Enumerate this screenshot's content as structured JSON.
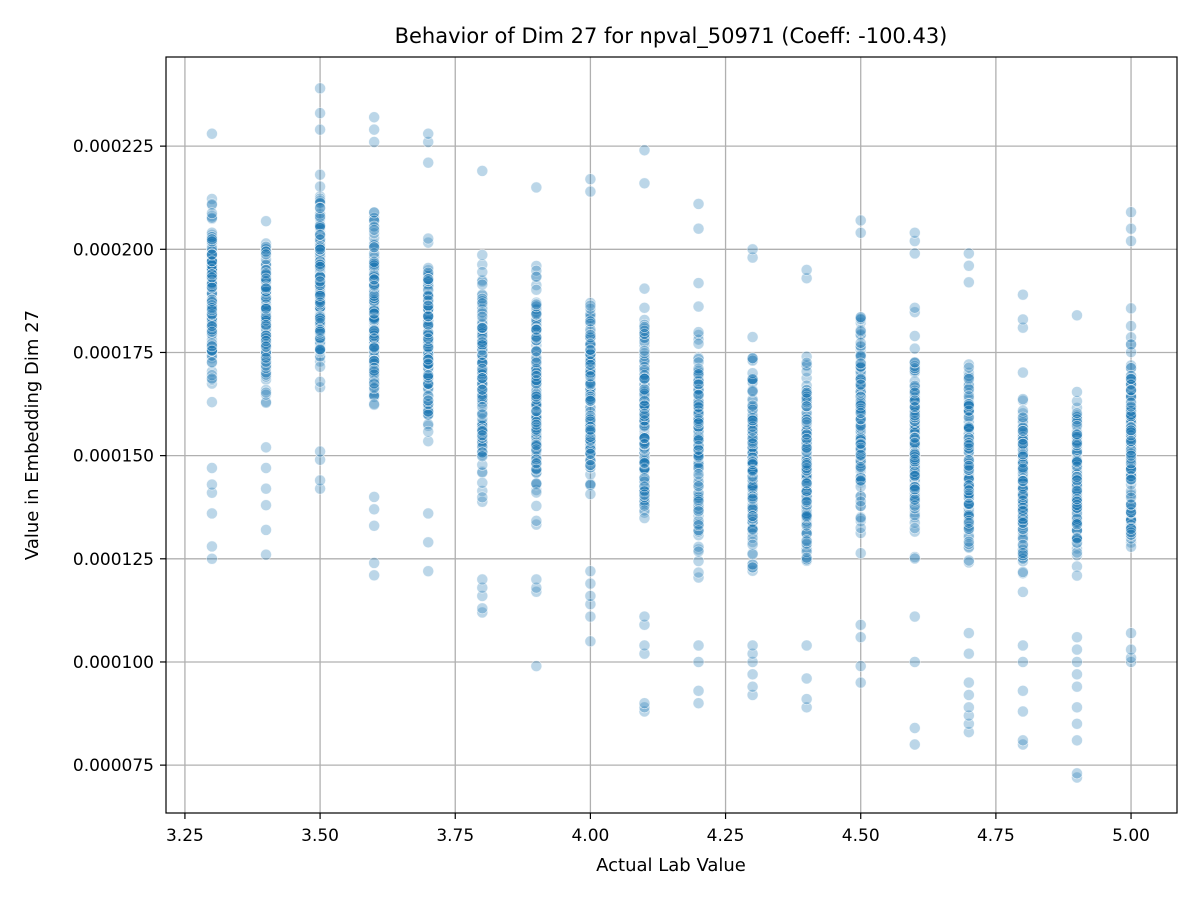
{
  "chart_data": {
    "type": "scatter",
    "title": "Behavior of Dim 27 for npval_50971 (Coeff: -100.43)",
    "xlabel": "Actual Lab Value",
    "ylabel": "Value in Embedding Dim 27",
    "xlim": [
      3.215,
      5.085
    ],
    "ylim": [
      6.34e-05,
      0.0002466
    ],
    "x_ticks": [
      "3.25",
      "3.50",
      "3.75",
      "4.00",
      "4.25",
      "4.50",
      "4.75",
      "5.00"
    ],
    "x_tick_values": [
      3.25,
      3.5,
      3.75,
      4.0,
      4.25,
      4.5,
      4.75,
      5.0
    ],
    "y_ticks": [
      "0.000075",
      "0.000100",
      "0.000125",
      "0.000150",
      "0.000175",
      "0.000200",
      "0.000225"
    ],
    "y_tick_values": [
      7.5e-05,
      0.0001,
      0.000125,
      0.00015,
      0.000175,
      0.0002,
      0.000225
    ],
    "grid": true,
    "marker_color": "#1f77b4",
    "marker_opacity": 0.3,
    "columns": [
      {
        "x": 3.3,
        "y_min": 0.000125,
        "y_max": 0.000228,
        "dense_min": 0.000155,
        "dense_max": 0.000222,
        "outliers": [
          0.000125,
          0.000128,
          0.000136,
          0.000141,
          0.000143,
          0.000147,
          0.000228
        ]
      },
      {
        "x": 3.4,
        "y_min": 0.000126,
        "y_max": 0.000217,
        "dense_min": 0.000155,
        "dense_max": 0.000215,
        "outliers": [
          0.000126,
          0.000132,
          0.000138,
          0.000142,
          0.000147,
          0.000152
        ]
      },
      {
        "x": 3.5,
        "y_min": 0.000142,
        "y_max": 0.000239,
        "dense_min": 0.000158,
        "dense_max": 0.000226,
        "outliers": [
          0.000142,
          0.000144,
          0.000149,
          0.000151,
          0.000229,
          0.000233,
          0.000239
        ]
      },
      {
        "x": 3.6,
        "y_min": 0.000121,
        "y_max": 0.000232,
        "dense_min": 0.000145,
        "dense_max": 0.000222,
        "outliers": [
          0.000121,
          0.000124,
          0.000133,
          0.000137,
          0.00014,
          0.000226,
          0.000229,
          0.000232
        ]
      },
      {
        "x": 3.7,
        "y_min": 0.000122,
        "y_max": 0.000228,
        "dense_min": 0.00014,
        "dense_max": 0.000212,
        "outliers": [
          0.000122,
          0.000129,
          0.000136,
          0.000221,
          0.000226,
          0.000228
        ]
      },
      {
        "x": 3.8,
        "y_min": 0.000112,
        "y_max": 0.000219,
        "dense_min": 0.000125,
        "dense_max": 0.000212,
        "outliers": [
          0.000112,
          0.000113,
          0.000116,
          0.000118,
          0.00012,
          0.000219
        ]
      },
      {
        "x": 3.9,
        "y_min": 9.9e-05,
        "y_max": 0.000215,
        "dense_min": 0.000122,
        "dense_max": 0.00021,
        "outliers": [
          9.9e-05,
          0.000117,
          0.000118,
          0.00012,
          0.000215
        ]
      },
      {
        "x": 4.0,
        "y_min": 0.000105,
        "y_max": 0.000217,
        "dense_min": 0.000125,
        "dense_max": 0.000205,
        "outliers": [
          0.000105,
          0.000111,
          0.000114,
          0.000116,
          0.000119,
          0.000122,
          0.000214,
          0.000217
        ]
      },
      {
        "x": 4.1,
        "y_min": 8.8e-05,
        "y_max": 0.000224,
        "dense_min": 0.000115,
        "dense_max": 0.000202,
        "outliers": [
          8.8e-05,
          8.9e-05,
          9e-05,
          0.000102,
          0.000104,
          0.000109,
          0.000111,
          0.000216,
          0.000224
        ]
      },
      {
        "x": 4.2,
        "y_min": 9e-05,
        "y_max": 0.000211,
        "dense_min": 0.00011,
        "dense_max": 0.0002,
        "outliers": [
          9e-05,
          9.3e-05,
          0.0001,
          0.000104,
          0.000205,
          0.000211
        ]
      },
      {
        "x": 4.3,
        "y_min": 9.2e-05,
        "y_max": 0.0002,
        "dense_min": 0.000108,
        "dense_max": 0.000192,
        "outliers": [
          9.2e-05,
          9.4e-05,
          9.7e-05,
          0.0001,
          0.000102,
          0.000104,
          0.000198,
          0.0002
        ]
      },
      {
        "x": 4.4,
        "y_min": 8.9e-05,
        "y_max": 0.000195,
        "dense_min": 0.00011,
        "dense_max": 0.000188,
        "outliers": [
          8.9e-05,
          9.1e-05,
          9.6e-05,
          0.000104,
          0.000193,
          0.000195
        ]
      },
      {
        "x": 4.5,
        "y_min": 9.5e-05,
        "y_max": 0.000207,
        "dense_min": 0.000112,
        "dense_max": 0.0002,
        "outliers": [
          9.5e-05,
          9.9e-05,
          0.000106,
          0.000109,
          0.000204,
          0.000207
        ]
      },
      {
        "x": 4.6,
        "y_min": 8e-05,
        "y_max": 0.000204,
        "dense_min": 0.000115,
        "dense_max": 0.000192,
        "outliers": [
          8e-05,
          8.4e-05,
          0.0001,
          0.000111,
          0.000199,
          0.000202,
          0.000204
        ]
      },
      {
        "x": 4.7,
        "y_min": 8.3e-05,
        "y_max": 0.000199,
        "dense_min": 0.00011,
        "dense_max": 0.000188,
        "outliers": [
          8.3e-05,
          8.5e-05,
          8.7e-05,
          8.9e-05,
          9.2e-05,
          9.5e-05,
          0.000102,
          0.000107,
          0.000192,
          0.000196,
          0.000199
        ]
      },
      {
        "x": 4.8,
        "y_min": 8e-05,
        "y_max": 0.000189,
        "dense_min": 0.000108,
        "dense_max": 0.000178,
        "outliers": [
          8e-05,
          8.1e-05,
          8.8e-05,
          9.3e-05,
          0.0001,
          0.000104,
          0.000181,
          0.000183,
          0.000189
        ]
      },
      {
        "x": 4.9,
        "y_min": 7.2e-05,
        "y_max": 0.000184,
        "dense_min": 0.00011,
        "dense_max": 0.000178,
        "outliers": [
          7.2e-05,
          7.3e-05,
          8.1e-05,
          8.5e-05,
          8.9e-05,
          9.4e-05,
          9.7e-05,
          0.0001,
          0.000103,
          0.000106,
          0.000184
        ]
      },
      {
        "x": 5.0,
        "y_min": 0.0001,
        "y_max": 0.000209,
        "dense_min": 0.00011,
        "dense_max": 0.000195,
        "outliers": [
          0.0001,
          0.000101,
          0.000103,
          0.000107,
          0.000202,
          0.000205,
          0.000209
        ]
      }
    ]
  }
}
